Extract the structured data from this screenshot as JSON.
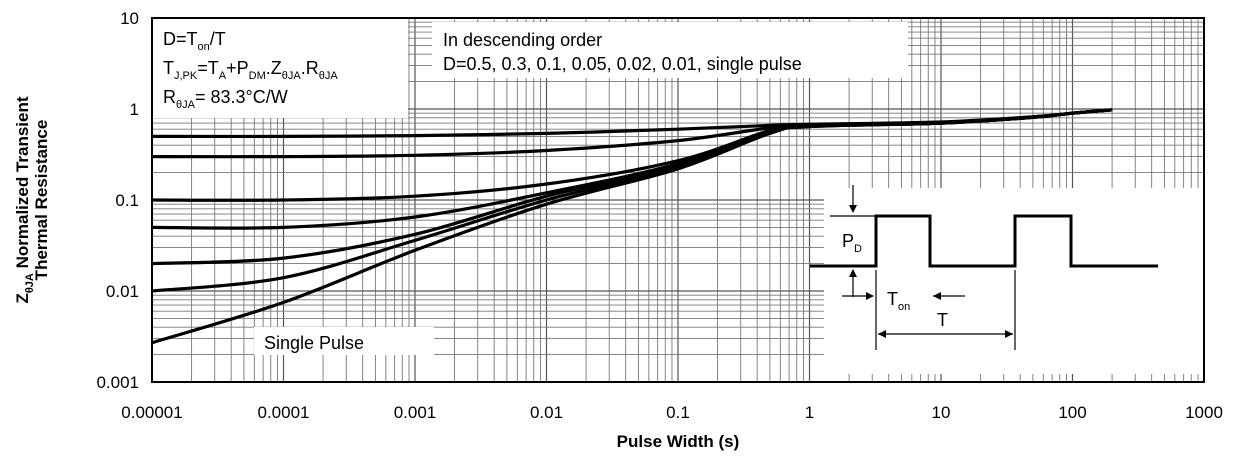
{
  "chart_data": {
    "type": "line",
    "title": "",
    "xlabel": "Pulse Width (s)",
    "ylabel_sym": "Z",
    "ylabel_sub": "θJA",
    "ylabel_rest": " Normalized Transient",
    "ylabel_line2": "Thermal Resistance",
    "x_scale": "log",
    "y_scale": "log",
    "xlim": [
      1e-05,
      1000
    ],
    "ylim": [
      0.001,
      10
    ],
    "grid": true,
    "x_ticks": [
      "0.00001",
      "0.0001",
      "0.001",
      "0.01",
      "0.1",
      "1",
      "10",
      "100",
      "1000"
    ],
    "y_ticks": [
      "0.001",
      "0.01",
      "0.1",
      "1",
      "10"
    ],
    "series": [
      {
        "name": "D=0.5",
        "points": [
          [
            1e-05,
            0.5
          ],
          [
            0.0001,
            0.5
          ],
          [
            0.001,
            0.51
          ],
          [
            0.01,
            0.54
          ],
          [
            0.1,
            0.6
          ],
          [
            0.5,
            0.66
          ],
          [
            1,
            0.68
          ],
          [
            10,
            0.72
          ],
          [
            50,
            0.82
          ],
          [
            100,
            0.9
          ],
          [
            200,
            0.98
          ]
        ]
      },
      {
        "name": "D=0.3",
        "points": [
          [
            1e-05,
            0.3
          ],
          [
            0.0001,
            0.3
          ],
          [
            0.001,
            0.31
          ],
          [
            0.01,
            0.35
          ],
          [
            0.1,
            0.45
          ],
          [
            0.5,
            0.62
          ],
          [
            1,
            0.66
          ],
          [
            10,
            0.71
          ],
          [
            50,
            0.82
          ],
          [
            100,
            0.9
          ],
          [
            200,
            0.98
          ]
        ]
      },
      {
        "name": "D=0.1",
        "points": [
          [
            1e-05,
            0.1
          ],
          [
            0.0001,
            0.1
          ],
          [
            0.001,
            0.11
          ],
          [
            0.01,
            0.15
          ],
          [
            0.1,
            0.27
          ],
          [
            0.5,
            0.58
          ],
          [
            1,
            0.65
          ],
          [
            10,
            0.7
          ],
          [
            50,
            0.81
          ],
          [
            100,
            0.9
          ],
          [
            200,
            0.98
          ]
        ]
      },
      {
        "name": "D=0.05",
        "points": [
          [
            1e-05,
            0.05
          ],
          [
            0.0001,
            0.05
          ],
          [
            0.001,
            0.065
          ],
          [
            0.01,
            0.12
          ],
          [
            0.1,
            0.25
          ],
          [
            0.5,
            0.57
          ],
          [
            1,
            0.65
          ],
          [
            10,
            0.7
          ],
          [
            50,
            0.81
          ],
          [
            100,
            0.9
          ],
          [
            200,
            0.98
          ]
        ]
      },
      {
        "name": "D=0.02",
        "points": [
          [
            1e-05,
            0.02
          ],
          [
            0.0001,
            0.023
          ],
          [
            0.001,
            0.042
          ],
          [
            0.01,
            0.11
          ],
          [
            0.1,
            0.24
          ],
          [
            0.5,
            0.56
          ],
          [
            1,
            0.65
          ],
          [
            10,
            0.7
          ],
          [
            50,
            0.81
          ],
          [
            100,
            0.9
          ],
          [
            200,
            0.98
          ]
        ]
      },
      {
        "name": "D=0.01",
        "points": [
          [
            1e-05,
            0.01
          ],
          [
            0.0001,
            0.014
          ],
          [
            0.001,
            0.036
          ],
          [
            0.01,
            0.1
          ],
          [
            0.1,
            0.23
          ],
          [
            0.5,
            0.55
          ],
          [
            1,
            0.64
          ],
          [
            10,
            0.7
          ],
          [
            50,
            0.81
          ],
          [
            100,
            0.9
          ],
          [
            200,
            0.98
          ]
        ]
      },
      {
        "name": "single pulse",
        "points": [
          [
            1e-05,
            0.0027
          ],
          [
            0.0001,
            0.0075
          ],
          [
            0.001,
            0.028
          ],
          [
            0.01,
            0.09
          ],
          [
            0.1,
            0.22
          ],
          [
            0.5,
            0.54
          ],
          [
            1,
            0.64
          ],
          [
            10,
            0.7
          ],
          [
            50,
            0.81
          ],
          [
            100,
            0.9
          ],
          [
            200,
            0.98
          ]
        ]
      }
    ],
    "annotations": {
      "box1_line1_a": "D=T",
      "box1_line1_sub": "on",
      "box1_line1_b": "/T",
      "box1_line2_a": "T",
      "box1_line2_sub1": "J,PK",
      "box1_line2_b": "=T",
      "box1_line2_sub2": "A",
      "box1_line2_c": "+P",
      "box1_line2_sub3": "DM",
      "box1_line2_d": ".Z",
      "box1_line2_sub4": "θJA",
      "box1_line2_e": ".R",
      "box1_line2_sub5": "θJA",
      "box1_line3_a": "R",
      "box1_line3_sub": "θJA",
      "box1_line3_b": "= 83.3°C/W",
      "box2_line1": "In descending order",
      "box2_line2": "D=0.5, 0.3, 0.1, 0.05, 0.02, 0.01, single pulse",
      "single_pulse_label": "Single Pulse",
      "inset_pd_a": "P",
      "inset_pd_sub": "D",
      "inset_ton_a": "T",
      "inset_ton_sub": "on",
      "inset_t": "T"
    }
  }
}
